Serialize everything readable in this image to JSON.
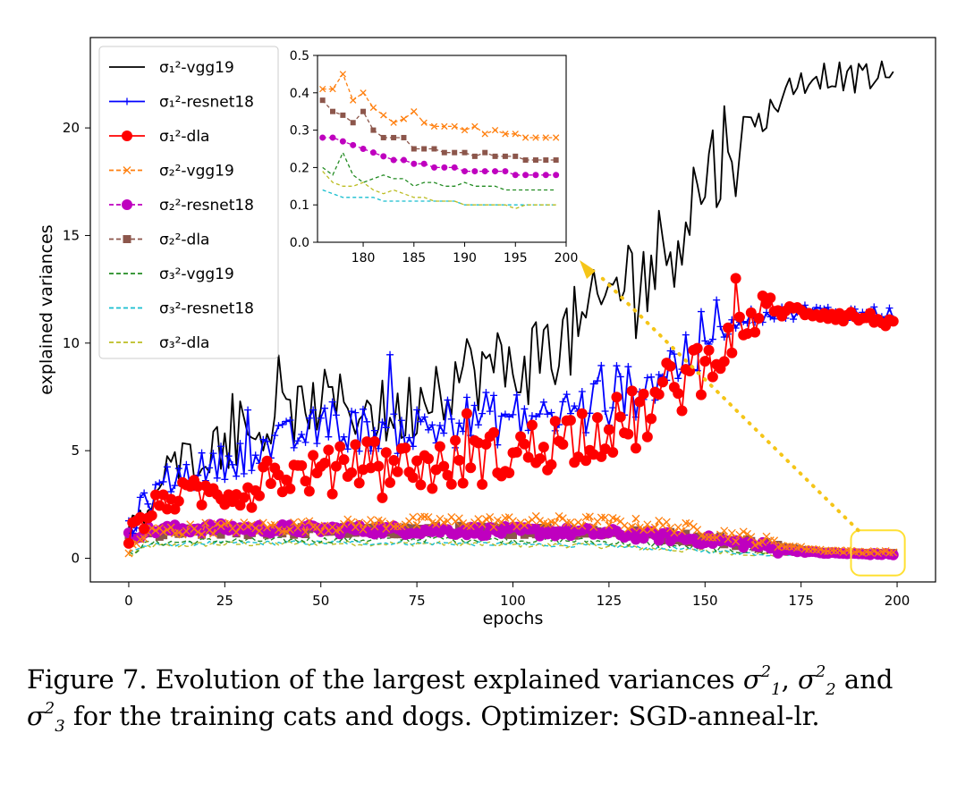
{
  "chart_data": [
    {
      "type": "line",
      "name": "main",
      "xlabel": "epochs",
      "ylabel": "explained variances",
      "xlim": [
        -10,
        210
      ],
      "ylim": [
        -1.1,
        24.2
      ],
      "xticks": [
        0,
        25,
        50,
        75,
        100,
        125,
        150,
        175,
        200
      ],
      "yticks": [
        0,
        5,
        10,
        15,
        20
      ],
      "legend_position": "top-left",
      "legend": [
        {
          "label": "σ₁²-vgg19",
          "key": "s1_vgg19",
          "color": "#000000",
          "style": "solid",
          "marker": "none"
        },
        {
          "label": "σ₁²-resnet18",
          "key": "s1_resnet18",
          "color": "#0000ff",
          "style": "solid",
          "marker": "plus"
        },
        {
          "label": "σ₁²-dla",
          "key": "s1_dla",
          "color": "#ff0000",
          "style": "solid",
          "marker": "circle"
        },
        {
          "label": "σ₂²-vgg19",
          "key": "s2_vgg19",
          "color": "#ff7f0e",
          "style": "dashed",
          "marker": "x"
        },
        {
          "label": "σ₂²-resnet18",
          "key": "s2_resnet18",
          "color": "#bf00bf",
          "style": "dashed",
          "marker": "circle"
        },
        {
          "label": "σ₂²-dla",
          "key": "s2_dla",
          "color": "#8c564b",
          "style": "dashed",
          "marker": "square"
        },
        {
          "label": "σ₃²-vgg19",
          "key": "s3_vgg19",
          "color": "#228b22",
          "style": "dashed",
          "marker": "none"
        },
        {
          "label": "σ₃²-resnet18",
          "key": "s3_resnet18",
          "color": "#17becf",
          "style": "dashed",
          "marker": "none"
        },
        {
          "label": "σ₃²-dla",
          "key": "s3_dla",
          "color": "#bcbd22",
          "style": "dashed",
          "marker": "none"
        }
      ],
      "series_anchors": {
        "s1_vgg19": [
          [
            0,
            1.3
          ],
          [
            5,
            2.2
          ],
          [
            10,
            4.0
          ],
          [
            15,
            4.6
          ],
          [
            20,
            5.0
          ],
          [
            30,
            5.6
          ],
          [
            40,
            6.4
          ],
          [
            50,
            7.3
          ],
          [
            60,
            7.0
          ],
          [
            70,
            6.5
          ],
          [
            80,
            8.2
          ],
          [
            90,
            8.8
          ],
          [
            100,
            8.8
          ],
          [
            110,
            9.8
          ],
          [
            120,
            10.8
          ],
          [
            128,
            13.0
          ],
          [
            135,
            13.3
          ],
          [
            140,
            14.5
          ],
          [
            145,
            16.2
          ],
          [
            150,
            17.6
          ],
          [
            155,
            19.0
          ],
          [
            160,
            20.0
          ],
          [
            165,
            20.4
          ],
          [
            170,
            21.5
          ],
          [
            175,
            22.2
          ],
          [
            180,
            22.5
          ],
          [
            185,
            22.4
          ],
          [
            190,
            22.3
          ],
          [
            195,
            22.4
          ],
          [
            200,
            22.4
          ]
        ],
        "s1_resnet18": [
          [
            0,
            1.5
          ],
          [
            5,
            2.6
          ],
          [
            10,
            3.6
          ],
          [
            20,
            4.2
          ],
          [
            30,
            4.8
          ],
          [
            40,
            5.4
          ],
          [
            50,
            6.1
          ],
          [
            60,
            6.0
          ],
          [
            70,
            5.9
          ],
          [
            80,
            6.1
          ],
          [
            90,
            6.5
          ],
          [
            100,
            6.5
          ],
          [
            110,
            6.6
          ],
          [
            120,
            7.0
          ],
          [
            130,
            7.8
          ],
          [
            135,
            8.3
          ],
          [
            140,
            8.8
          ],
          [
            150,
            10.0
          ],
          [
            155,
            10.6
          ],
          [
            160,
            11.2
          ],
          [
            165,
            11.3
          ],
          [
            170,
            11.4
          ],
          [
            175,
            11.5
          ],
          [
            185,
            11.4
          ],
          [
            200,
            11.4
          ]
        ],
        "s1_dla": [
          [
            0,
            1.0
          ],
          [
            5,
            2.0
          ],
          [
            10,
            2.8
          ],
          [
            20,
            3.0
          ],
          [
            30,
            3.2
          ],
          [
            40,
            3.8
          ],
          [
            50,
            4.0
          ],
          [
            60,
            4.5
          ],
          [
            70,
            4.4
          ],
          [
            80,
            4.2
          ],
          [
            90,
            4.6
          ],
          [
            100,
            4.8
          ],
          [
            110,
            5.4
          ],
          [
            120,
            6.0
          ],
          [
            130,
            6.2
          ],
          [
            135,
            6.8
          ],
          [
            140,
            7.6
          ],
          [
            145,
            8.5
          ],
          [
            150,
            9.0
          ],
          [
            155,
            9.8
          ],
          [
            160,
            10.8
          ],
          [
            165,
            11.4
          ],
          [
            170,
            11.5
          ],
          [
            175,
            11.5
          ],
          [
            185,
            11.3
          ],
          [
            200,
            11.0
          ]
        ],
        "s2_vgg19": [
          [
            0,
            0.3
          ],
          [
            5,
            1.2
          ],
          [
            20,
            1.4
          ],
          [
            50,
            1.5
          ],
          [
            80,
            1.7
          ],
          [
            100,
            1.7
          ],
          [
            120,
            1.7
          ],
          [
            140,
            1.5
          ],
          [
            160,
            1.0
          ],
          [
            170,
            0.6
          ],
          [
            180,
            0.38
          ],
          [
            190,
            0.3
          ],
          [
            200,
            0.28
          ]
        ],
        "s2_resnet18": [
          [
            0,
            1.0
          ],
          [
            5,
            1.3
          ],
          [
            20,
            1.4
          ],
          [
            50,
            1.35
          ],
          [
            80,
            1.3
          ],
          [
            100,
            1.25
          ],
          [
            120,
            1.2
          ],
          [
            140,
            1.0
          ],
          [
            160,
            0.7
          ],
          [
            170,
            0.4
          ],
          [
            180,
            0.25
          ],
          [
            190,
            0.2
          ],
          [
            200,
            0.18
          ]
        ],
        "s2_dla": [
          [
            0,
            0.9
          ],
          [
            5,
            1.1
          ],
          [
            20,
            1.25
          ],
          [
            50,
            1.3
          ],
          [
            80,
            1.3
          ],
          [
            100,
            1.3
          ],
          [
            120,
            1.25
          ],
          [
            140,
            1.05
          ],
          [
            160,
            0.75
          ],
          [
            170,
            0.5
          ],
          [
            180,
            0.3
          ],
          [
            190,
            0.24
          ],
          [
            200,
            0.22
          ]
        ],
        "s3_vgg19": [
          [
            0,
            0.2
          ],
          [
            5,
            0.7
          ],
          [
            20,
            0.8
          ],
          [
            50,
            0.85
          ],
          [
            80,
            0.9
          ],
          [
            100,
            0.85
          ],
          [
            120,
            0.8
          ],
          [
            140,
            0.6
          ],
          [
            160,
            0.35
          ],
          [
            170,
            0.22
          ],
          [
            180,
            0.16
          ],
          [
            200,
            0.14
          ]
        ],
        "s3_resnet18": [
          [
            0,
            0.3
          ],
          [
            5,
            0.6
          ],
          [
            20,
            0.7
          ],
          [
            50,
            0.72
          ],
          [
            80,
            0.7
          ],
          [
            100,
            0.65
          ],
          [
            120,
            0.6
          ],
          [
            140,
            0.45
          ],
          [
            160,
            0.25
          ],
          [
            170,
            0.16
          ],
          [
            180,
            0.12
          ],
          [
            200,
            0.1
          ]
        ],
        "s3_dla": [
          [
            0,
            0.1
          ],
          [
            5,
            0.55
          ],
          [
            20,
            0.65
          ],
          [
            50,
            0.7
          ],
          [
            80,
            0.68
          ],
          [
            100,
            0.62
          ],
          [
            120,
            0.6
          ],
          [
            140,
            0.42
          ],
          [
            160,
            0.24
          ],
          [
            170,
            0.15
          ],
          [
            180,
            0.11
          ],
          [
            200,
            0.1
          ]
        ]
      },
      "highlight_box": {
        "x_range": [
          188,
          202
        ],
        "y_range": [
          -0.8,
          1.3
        ],
        "color": "#ffe033"
      }
    },
    {
      "type": "line",
      "name": "inset",
      "title": "",
      "xlim": [
        175.5,
        200
      ],
      "ylim": [
        0.0,
        0.5
      ],
      "xticks": [
        180,
        185,
        190,
        195,
        200
      ],
      "yticks": [
        0.0,
        0.1,
        0.2,
        0.3,
        0.4,
        0.5
      ],
      "ytick_labels": [
        "0.0",
        "0.1",
        "0.2",
        "0.3",
        "0.4",
        "0.5"
      ],
      "x": [
        176,
        177,
        178,
        179,
        180,
        181,
        182,
        183,
        184,
        185,
        186,
        187,
        188,
        189,
        190,
        191,
        192,
        193,
        194,
        195,
        196,
        197,
        198,
        199
      ],
      "series": [
        {
          "name": "σ₂²-vgg19",
          "color": "#ff7f0e",
          "style": "dashed",
          "marker": "x",
          "values": [
            0.41,
            0.41,
            0.45,
            0.38,
            0.4,
            0.36,
            0.34,
            0.32,
            0.33,
            0.35,
            0.32,
            0.31,
            0.31,
            0.31,
            0.3,
            0.31,
            0.29,
            0.3,
            0.29,
            0.29,
            0.28,
            0.28,
            0.28,
            0.28
          ]
        },
        {
          "name": "σ₂²-dla",
          "color": "#8c564b",
          "style": "dashed",
          "marker": "square",
          "values": [
            0.38,
            0.35,
            0.34,
            0.32,
            0.35,
            0.3,
            0.28,
            0.28,
            0.28,
            0.25,
            0.25,
            0.25,
            0.24,
            0.24,
            0.24,
            0.23,
            0.24,
            0.23,
            0.23,
            0.23,
            0.22,
            0.22,
            0.22,
            0.22
          ]
        },
        {
          "name": "σ₂²-resnet18",
          "color": "#bf00bf",
          "style": "dashed",
          "marker": "circle",
          "values": [
            0.28,
            0.28,
            0.27,
            0.26,
            0.25,
            0.24,
            0.23,
            0.22,
            0.22,
            0.21,
            0.21,
            0.2,
            0.2,
            0.2,
            0.19,
            0.19,
            0.19,
            0.19,
            0.19,
            0.18,
            0.18,
            0.18,
            0.18,
            0.18
          ]
        },
        {
          "name": "σ₃²-vgg19",
          "color": "#228b22",
          "style": "dashed",
          "marker": "none",
          "values": [
            0.2,
            0.18,
            0.24,
            0.18,
            0.16,
            0.17,
            0.18,
            0.17,
            0.17,
            0.15,
            0.16,
            0.16,
            0.15,
            0.15,
            0.16,
            0.15,
            0.15,
            0.15,
            0.14,
            0.14,
            0.14,
            0.14,
            0.14,
            0.14
          ]
        },
        {
          "name": "σ₃²-resnet18",
          "color": "#17becf",
          "style": "dashed",
          "marker": "none",
          "values": [
            0.14,
            0.13,
            0.12,
            0.12,
            0.12,
            0.12,
            0.11,
            0.11,
            0.11,
            0.11,
            0.11,
            0.11,
            0.11,
            0.11,
            0.1,
            0.1,
            0.1,
            0.1,
            0.1,
            0.1,
            0.1,
            0.1,
            0.1,
            0.1
          ]
        },
        {
          "name": "σ₃²-dla",
          "color": "#bcbd22",
          "style": "dashed",
          "marker": "none",
          "values": [
            0.19,
            0.16,
            0.15,
            0.15,
            0.16,
            0.14,
            0.13,
            0.14,
            0.13,
            0.12,
            0.12,
            0.11,
            0.11,
            0.11,
            0.1,
            0.1,
            0.1,
            0.1,
            0.1,
            0.09,
            0.1,
            0.1,
            0.1,
            0.1
          ]
        }
      ]
    }
  ],
  "caption": {
    "part1": "Figure 7. Evolution of the largest explained variances ",
    "and": " and",
    "part2": " for the training cats and dogs. Optimizer: SGD-anneal-lr.",
    "sep": ", ",
    "sig1": "σ",
    "sub1": "1",
    "sup1": "2",
    "sig2": "σ",
    "sub2": "2",
    "sup2": "2",
    "sig3": "σ",
    "sub3": "3",
    "sup3": "2"
  }
}
